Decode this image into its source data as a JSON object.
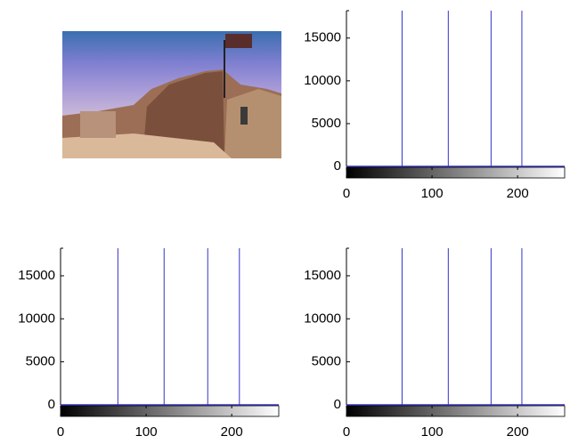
{
  "chart_data": [
    {
      "type": "stem",
      "x": [
        65,
        119,
        169,
        205
      ],
      "values": [
        18200,
        18200,
        18200,
        18200
      ],
      "color": "#3333cc",
      "xlim": [
        0,
        255
      ],
      "ylim": [
        0,
        18200
      ],
      "xticks": [
        0,
        100,
        200
      ],
      "yticks": [
        0,
        5000,
        10000,
        15000
      ]
    },
    {
      "type": "stem",
      "x": [
        67,
        121,
        172,
        209
      ],
      "values": [
        18200,
        18200,
        18200,
        18200
      ],
      "color": "#3333cc",
      "xlim": [
        0,
        255
      ],
      "ylim": [
        0,
        18200
      ],
      "xticks": [
        0,
        100,
        200
      ],
      "yticks": [
        0,
        5000,
        10000,
        15000
      ]
    },
    {
      "type": "stem",
      "x": [
        65,
        119,
        169,
        205
      ],
      "values": [
        18200,
        18200,
        18200,
        18200
      ],
      "color": "#3333cc",
      "xlim": [
        0,
        255
      ],
      "ylim": [
        0,
        18200
      ],
      "xticks": [
        0,
        100,
        200
      ],
      "yticks": [
        0,
        5000,
        10000,
        15000
      ]
    }
  ]
}
